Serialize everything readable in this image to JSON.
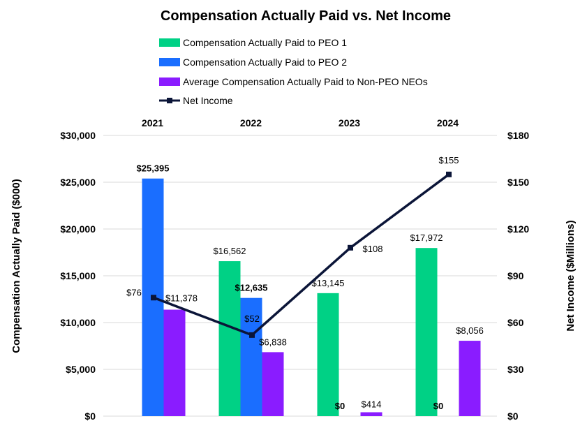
{
  "chart_data": {
    "type": "bar",
    "title": "Compensation Actually Paid vs. Net Income",
    "categories": [
      "2021",
      "2022",
      "2023",
      "2024"
    ],
    "ylabel": "Compensation Actually Paid ($000)",
    "y2label": "Net Income ($Millions)",
    "ylim": [
      0,
      30000
    ],
    "y2lim": [
      0,
      180
    ],
    "yticks": [
      "$0",
      "$5,000",
      "$10,000",
      "$15,000",
      "$20,000",
      "$25,000",
      "$30,000"
    ],
    "y2ticks": [
      "$0",
      "$30",
      "$60",
      "$90",
      "$120",
      "$150",
      "$180"
    ],
    "legend_position": "top",
    "grid": true,
    "series": [
      {
        "name": "Compensation Actually Paid to PEO 1",
        "color": "#00D185",
        "values": [
          null,
          16562,
          13145,
          17972
        ],
        "labels": [
          "",
          "$16,562",
          "$13,145",
          "$17,972"
        ],
        "bold_labels": false
      },
      {
        "name": "Compensation Actually Paid to PEO 2",
        "color": "#1A6EFF",
        "values": [
          25395,
          12635,
          0,
          0
        ],
        "labels": [
          "$25,395",
          "$12,635",
          "$0",
          "$0"
        ],
        "bold_labels": true
      },
      {
        "name": "Average Compensation Actually Paid to Non-PEO NEOs",
        "color": "#8A1CFF",
        "values": [
          11378,
          6838,
          414,
          8056
        ],
        "labels": [
          "$11,378",
          "$6,838",
          "$414",
          "$8,056"
        ],
        "bold_labels": false
      }
    ],
    "line_series": {
      "name": "Net Income",
      "color": "#0B1538",
      "axis": "right",
      "values": [
        76,
        52,
        108,
        155
      ],
      "labels": [
        "$76",
        "$52",
        "$108",
        "$155"
      ]
    }
  }
}
